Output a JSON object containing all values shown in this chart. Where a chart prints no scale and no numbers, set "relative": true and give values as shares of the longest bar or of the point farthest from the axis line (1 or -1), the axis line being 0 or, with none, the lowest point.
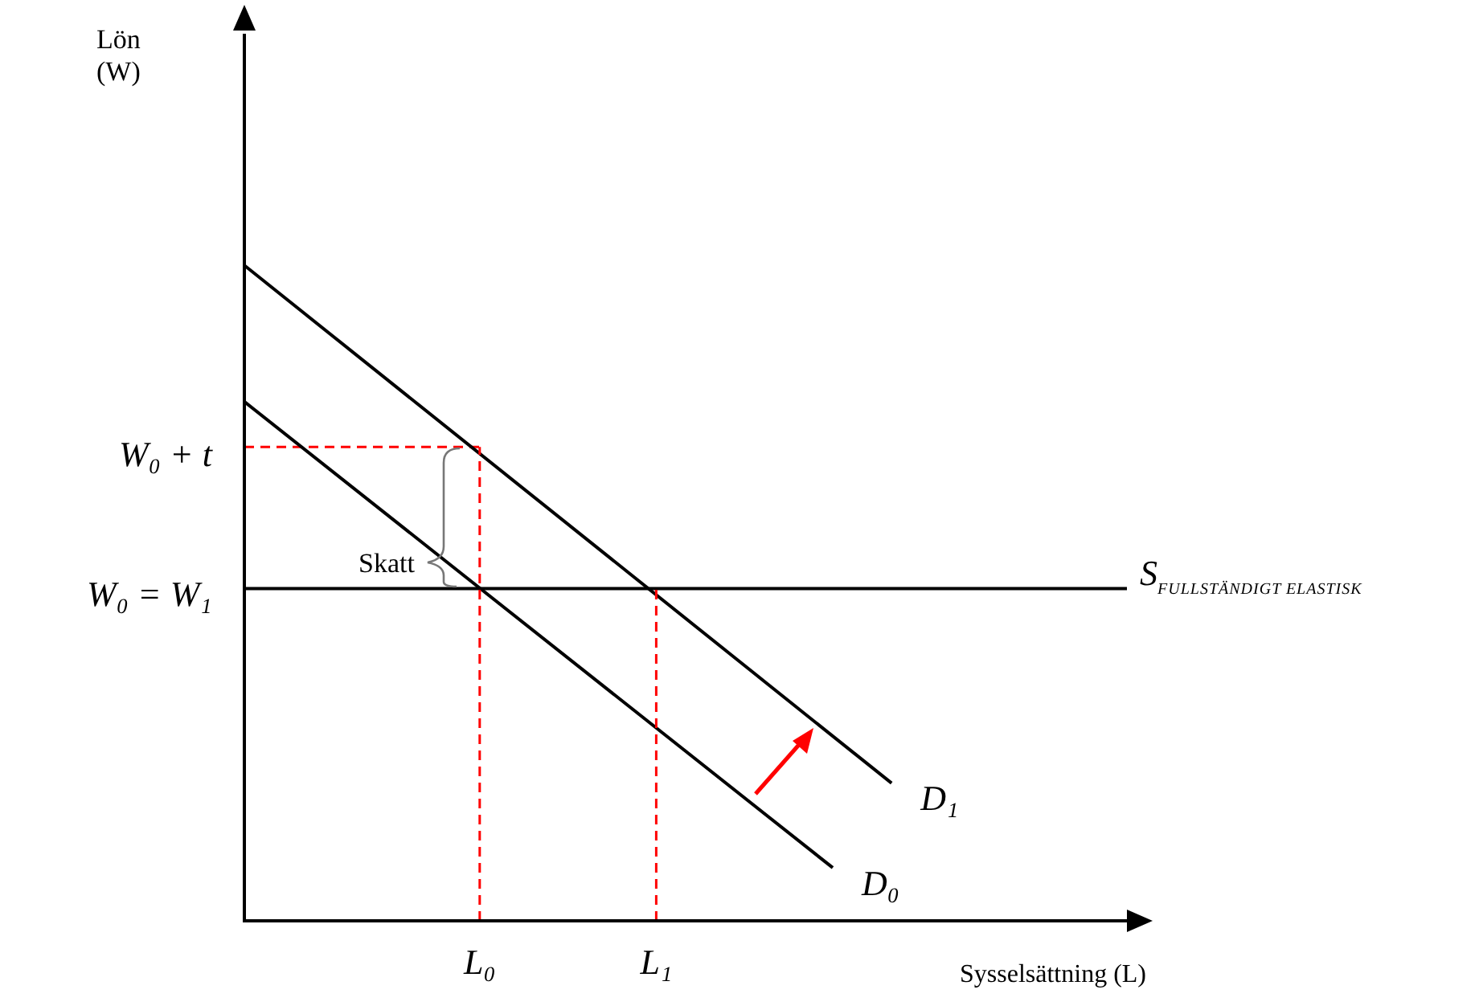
{
  "chart_data": {
    "type": "line",
    "relative": true,
    "xlabel": "Sysselsättning (L)",
    "tick_labels": "x",
    "marker": "none",
    "categories": [
      null,
      null,
      null,
      null,
      "L₀",
      null,
      null,
      "L₁",
      null,
      null,
      null,
      null,
      null,
      null,
      null,
      null
    ],
    "series": [
      {
        "name": "D₁",
        "color": "#000000",
        "values": [
          1,
          null,
          null,
          null,
          null,
          null,
          null,
          null,
          null,
          null,
          null,
          0.21,
          null,
          null,
          null,
          null
        ]
      },
      {
        "name": "D₀",
        "color": "#000000",
        "values": [
          0.792,
          null,
          null,
          null,
          null,
          null,
          null,
          null,
          null,
          null,
          0.081,
          null,
          null,
          null,
          null,
          null
        ]
      },
      {
        "name": "S$_{FULLSTÄNDIGT ELASTISK}$",
        "color": "#000000",
        "values": [
          0.507,
          null,
          null,
          null,
          null,
          null,
          null,
          null,
          null,
          null,
          null,
          null,
          null,
          null,
          null,
          0.507
        ]
      },
      {
        "color": "#ff0000",
        "line_style": "dashed",
        "values": [
          0.723,
          null,
          null,
          null,
          0.723,
          null,
          null,
          null,
          null,
          null,
          null,
          null,
          null,
          null,
          null,
          null
        ]
      }
    ],
    "ref_lines": [
      {
        "axis": "x",
        "value": "L₀",
        "color": "#ff0000",
        "line_style": "dashed"
      },
      {
        "axis": "x",
        "value": "L₁",
        "color": "#ff0000",
        "line_style": "dashed"
      }
    ],
    "annotations": [
      "W₀ + t",
      "W₀ = W₁",
      "Skatt",
      "Lön\n(W)"
    ]
  }
}
